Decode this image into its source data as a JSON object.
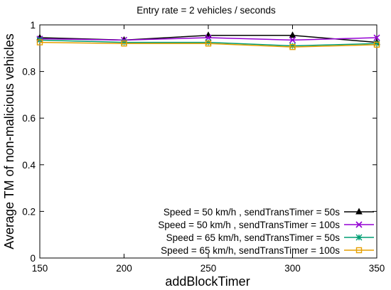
{
  "chart_data": {
    "type": "line",
    "title": "Entry rate = 2 vehicles / seconds",
    "xlabel": "addBlockTimer",
    "ylabel": "Average TM of non-malicious vehicles",
    "x": [
      150,
      200,
      250,
      300,
      350
    ],
    "xlim": [
      150,
      350
    ],
    "ylim": [
      0,
      1
    ],
    "xticks": [
      "150",
      "200",
      "250",
      "300",
      "350"
    ],
    "yticks": [
      "0",
      "0.2",
      "0.4",
      "0.6",
      "0.8",
      "1"
    ],
    "grid": false,
    "legend_position": "bottom-right",
    "series": [
      {
        "name": "Speed = 50 km/h , sendTransTimer = 50s",
        "values": [
          0.945,
          0.935,
          0.955,
          0.955,
          0.925
        ],
        "color": "#000000",
        "marker": "triangle"
      },
      {
        "name": "Speed = 50 km/h , sendTransTimer = 100s",
        "values": [
          0.94,
          0.935,
          0.945,
          0.935,
          0.945
        ],
        "color": "#9400d3",
        "marker": "x"
      },
      {
        "name": "Speed = 65 km/h, sendTransTimer = 50s",
        "values": [
          0.935,
          0.925,
          0.925,
          0.91,
          0.92
        ],
        "color": "#009e73",
        "marker": "star"
      },
      {
        "name": "Speed = 65 km/h, sendTransTimer = 100s",
        "values": [
          0.925,
          0.92,
          0.92,
          0.905,
          0.915
        ],
        "color": "#e69f00",
        "marker": "square"
      }
    ]
  }
}
